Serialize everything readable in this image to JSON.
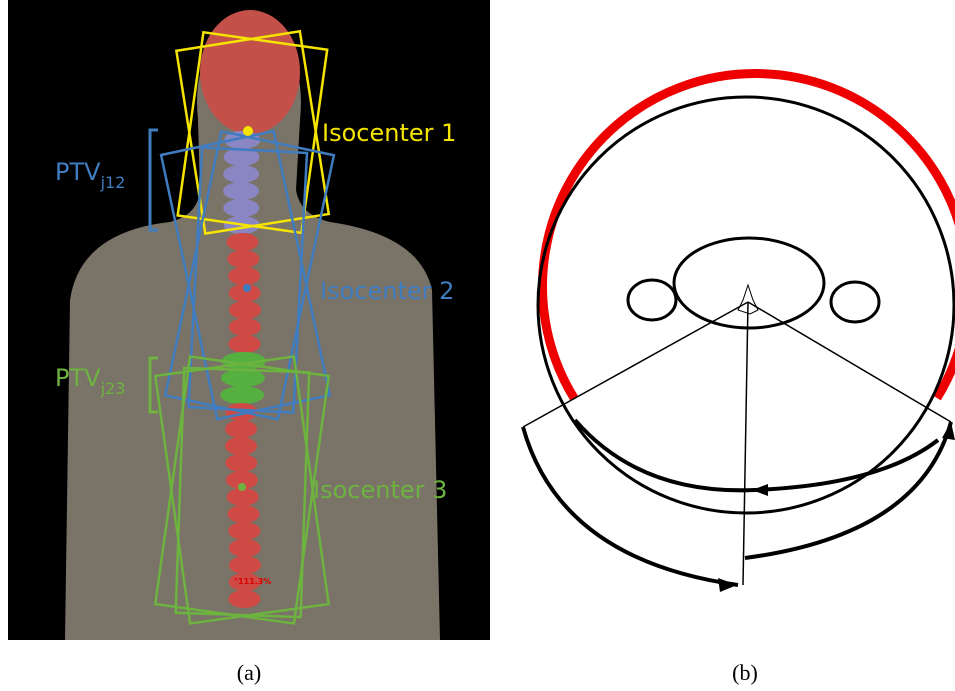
{
  "panel_a": {
    "isocenter_1": "Isocenter 1",
    "isocenter_2": "Isocenter 2",
    "isocenter_3": "Isocenter 3",
    "ptv_j12": {
      "main": "PTV",
      "sub": "j12"
    },
    "ptv_j23": {
      "main": "PTV",
      "sub": "j23"
    },
    "dose_label": "°111.3%"
  },
  "captions": {
    "a": "(a)",
    "b": "(b)"
  }
}
